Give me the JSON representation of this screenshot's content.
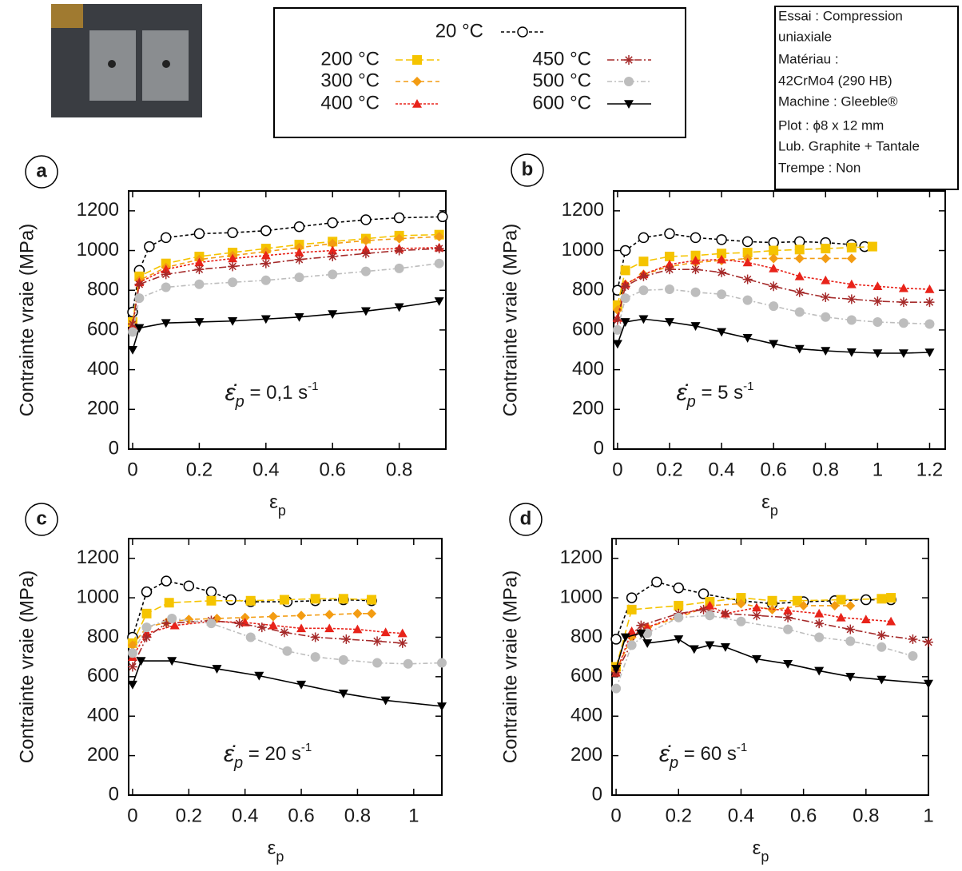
{
  "legend": {
    "entries": [
      {
        "name": "20 °C",
        "color": "#000000",
        "marker": "open-circle",
        "dash": "4 3"
      },
      {
        "name": "200 °C",
        "color": "#f5c400",
        "marker": "square",
        "dash": "9 4"
      },
      {
        "name": "300 °C",
        "color": "#f39c12",
        "marker": "diamond",
        "dash": "6 4"
      },
      {
        "name": "400 °C",
        "color": "#e8231a",
        "marker": "triangle",
        "dash": "3 2"
      },
      {
        "name": "450 °C",
        "color": "#a52a2a",
        "marker": "asterisk",
        "dash": "9 3 2 3"
      },
      {
        "name": "500 °C",
        "color": "#bdbdbd",
        "marker": "circle",
        "dash": "6 3 2 3"
      },
      {
        "name": "600 °C",
        "color": "#000000",
        "marker": "down-triangle",
        "dash": "none"
      }
    ]
  },
  "info": {
    "lines": [
      "Essai : Compression",
      "uniaxiale",
      "Matériau :",
      "42CrMo4 (290 HB)",
      "Machine : Gleeble®",
      "Plot : ϕ8 x 12 mm",
      "Lub. Graphite + Tantale",
      "Trempe : Non"
    ]
  },
  "chart_data": [
    {
      "type": "line",
      "label": "a",
      "ylabel": "Contrainte vraie (MPa)",
      "xlabel": {
        "text": "ε",
        "sub": "p"
      },
      "annotation": {
        "symbol": "ε̇",
        "sub": "p",
        "text": " = 0,1 s",
        "sup": "-1"
      },
      "xlim": [
        -0.012,
        0.94
      ],
      "ylim": [
        0,
        1300
      ],
      "xticks": [
        0,
        0.2,
        0.4,
        0.6,
        0.8
      ],
      "yticks": [
        0,
        200,
        400,
        600,
        800,
        1000,
        1200
      ],
      "series": [
        {
          "x": [
            0,
            0.02,
            0.05,
            0.1,
            0.2,
            0.3,
            0.4,
            0.5,
            0.6,
            0.7,
            0.8,
            0.93
          ],
          "values": [
            690,
            900,
            1020,
            1065,
            1085,
            1090,
            1100,
            1120,
            1140,
            1155,
            1165,
            1170
          ]
        },
        {
          "x": [
            0,
            0.02,
            0.1,
            0.2,
            0.3,
            0.4,
            0.5,
            0.6,
            0.7,
            0.8,
            0.92
          ],
          "values": [
            640,
            870,
            935,
            970,
            990,
            1010,
            1030,
            1045,
            1060,
            1075,
            1080
          ]
        },
        {
          "x": [
            0,
            0.02,
            0.1,
            0.2,
            0.3,
            0.4,
            0.5,
            0.6,
            0.7,
            0.8,
            0.92
          ],
          "values": [
            630,
            850,
            915,
            955,
            975,
            995,
            1015,
            1035,
            1050,
            1060,
            1070
          ]
        },
        {
          "x": [
            0,
            0.02,
            0.1,
            0.2,
            0.3,
            0.4,
            0.5,
            0.6,
            0.7,
            0.8,
            0.92
          ],
          "values": [
            620,
            840,
            905,
            940,
            960,
            975,
            990,
            1000,
            1005,
            1010,
            1015
          ]
        },
        {
          "x": [
            0,
            0.02,
            0.1,
            0.2,
            0.3,
            0.4,
            0.5,
            0.6,
            0.7,
            0.8,
            0.92
          ],
          "values": [
            630,
            830,
            880,
            905,
            920,
            935,
            955,
            970,
            985,
            1000,
            1010
          ]
        },
        {
          "x": [
            0,
            0.02,
            0.1,
            0.2,
            0.3,
            0.4,
            0.5,
            0.6,
            0.7,
            0.8,
            0.92
          ],
          "values": [
            590,
            760,
            815,
            830,
            840,
            850,
            865,
            880,
            895,
            910,
            935
          ]
        },
        {
          "x": [
            0,
            0.02,
            0.1,
            0.2,
            0.3,
            0.4,
            0.5,
            0.6,
            0.7,
            0.8,
            0.92
          ],
          "values": [
            500,
            610,
            635,
            640,
            645,
            655,
            665,
            680,
            695,
            715,
            745
          ]
        }
      ]
    },
    {
      "type": "line",
      "label": "b",
      "ylabel": "Contrainte vraie (MPa)",
      "xlabel": {
        "text": "ε",
        "sub": "p"
      },
      "annotation": {
        "symbol": "ε̇",
        "sub": "p",
        "text": " = 5 s",
        "sup": "-1"
      },
      "xlim": [
        -0.015,
        1.26
      ],
      "ylim": [
        0,
        1300
      ],
      "xticks": [
        0,
        0.2,
        0.4,
        0.6,
        0.8,
        1,
        1.2
      ],
      "yticks": [
        0,
        200,
        400,
        600,
        800,
        1000,
        1200
      ],
      "series": [
        {
          "x": [
            0,
            0.03,
            0.1,
            0.2,
            0.3,
            0.4,
            0.5,
            0.6,
            0.7,
            0.8,
            0.9,
            0.95
          ],
          "values": [
            800,
            1000,
            1065,
            1085,
            1065,
            1055,
            1045,
            1040,
            1045,
            1040,
            1030,
            1020
          ]
        },
        {
          "x": [
            0,
            0.03,
            0.1,
            0.2,
            0.3,
            0.4,
            0.5,
            0.6,
            0.7,
            0.8,
            0.9,
            0.98
          ],
          "values": [
            725,
            900,
            945,
            970,
            975,
            985,
            990,
            1000,
            1005,
            1010,
            1015,
            1020
          ]
        },
        {
          "x": [
            0,
            0.03,
            0.1,
            0.2,
            0.3,
            0.4,
            0.5,
            0.6,
            0.7,
            0.8,
            0.9
          ],
          "values": [
            700,
            830,
            880,
            920,
            940,
            950,
            960,
            960,
            960,
            960,
            960
          ]
        },
        {
          "x": [
            0,
            0.03,
            0.1,
            0.2,
            0.3,
            0.4,
            0.5,
            0.6,
            0.7,
            0.8,
            0.9,
            1.0,
            1.1,
            1.2
          ],
          "values": [
            660,
            830,
            880,
            930,
            950,
            955,
            940,
            910,
            870,
            850,
            830,
            820,
            810,
            805
          ]
        },
        {
          "x": [
            0,
            0.03,
            0.1,
            0.2,
            0.3,
            0.4,
            0.5,
            0.6,
            0.7,
            0.8,
            0.9,
            1.0,
            1.1,
            1.2
          ],
          "values": [
            650,
            820,
            870,
            905,
            905,
            890,
            855,
            820,
            790,
            765,
            755,
            745,
            740,
            740
          ]
        },
        {
          "x": [
            0,
            0.03,
            0.1,
            0.2,
            0.3,
            0.4,
            0.5,
            0.6,
            0.7,
            0.8,
            0.9,
            1.0,
            1.1,
            1.2
          ],
          "values": [
            600,
            760,
            800,
            805,
            790,
            780,
            750,
            720,
            690,
            665,
            650,
            640,
            635,
            630
          ]
        },
        {
          "x": [
            0,
            0.03,
            0.1,
            0.2,
            0.3,
            0.4,
            0.5,
            0.6,
            0.7,
            0.8,
            0.9,
            1.0,
            1.1,
            1.2
          ],
          "values": [
            530,
            640,
            655,
            640,
            620,
            590,
            560,
            530,
            505,
            495,
            488,
            483,
            483,
            487
          ]
        }
      ]
    },
    {
      "type": "line",
      "label": "c",
      "ylabel": "Contrainte vraie (MPa)",
      "xlabel": {
        "text": "ε",
        "sub": "p"
      },
      "annotation": {
        "symbol": "ε̇",
        "sub": "p",
        "text": " = 20 s",
        "sup": "-1"
      },
      "xlim": [
        -0.014,
        1.1
      ],
      "ylim": [
        0,
        1300
      ],
      "xticks": [
        0,
        0.2,
        0.4,
        0.6,
        0.8,
        1
      ],
      "yticks": [
        0,
        200,
        400,
        600,
        800,
        1000,
        1200
      ],
      "series": [
        {
          "x": [
            0,
            0.05,
            0.12,
            0.2,
            0.28,
            0.35,
            0.42,
            0.55,
            0.65,
            0.75,
            0.85
          ],
          "values": [
            800,
            1030,
            1085,
            1060,
            1030,
            990,
            980,
            980,
            985,
            990,
            985
          ]
        },
        {
          "x": [
            0,
            0.05,
            0.13,
            0.28,
            0.42,
            0.54,
            0.65,
            0.75,
            0.85
          ],
          "values": [
            770,
            920,
            975,
            985,
            985,
            990,
            995,
            995,
            990
          ]
        },
        {
          "x": [
            0,
            0.05,
            0.12,
            0.2,
            0.3,
            0.4,
            0.5,
            0.6,
            0.7,
            0.8,
            0.85
          ],
          "values": [
            760,
            850,
            875,
            890,
            895,
            900,
            905,
            910,
            915,
            920,
            920
          ]
        },
        {
          "x": [
            0,
            0.05,
            0.15,
            0.28,
            0.4,
            0.5,
            0.6,
            0.7,
            0.8,
            0.9,
            0.96
          ],
          "values": [
            700,
            820,
            860,
            880,
            875,
            860,
            845,
            845,
            840,
            825,
            820
          ]
        },
        {
          "x": [
            0,
            0.05,
            0.12,
            0.28,
            0.38,
            0.46,
            0.54,
            0.65,
            0.76,
            0.87,
            0.96
          ],
          "values": [
            650,
            800,
            870,
            885,
            870,
            850,
            825,
            800,
            790,
            780,
            770
          ]
        },
        {
          "x": [
            0,
            0.05,
            0.14,
            0.28,
            0.42,
            0.55,
            0.65,
            0.75,
            0.87,
            0.98,
            1.1
          ],
          "values": [
            720,
            850,
            895,
            870,
            800,
            730,
            700,
            685,
            670,
            665,
            670
          ]
        },
        {
          "x": [
            0,
            0.03,
            0.14,
            0.3,
            0.45,
            0.6,
            0.75,
            0.9,
            1.1
          ],
          "values": [
            560,
            680,
            680,
            640,
            605,
            560,
            515,
            480,
            450
          ]
        }
      ]
    },
    {
      "type": "line",
      "label": "d",
      "ylabel": "Contrainte vraie (MPa)",
      "xlabel": {
        "text": "ε",
        "sub": "p"
      },
      "annotation": {
        "symbol": "ε̇",
        "sub": "p",
        "text": " = 60 s",
        "sup": "-1"
      },
      "xlim": [
        -0.013,
        1.0
      ],
      "ylim": [
        0,
        1300
      ],
      "xticks": [
        0,
        0.2,
        0.4,
        0.6,
        0.8,
        1
      ],
      "yticks": [
        0,
        200,
        400,
        600,
        800,
        1000,
        1200
      ],
      "series": [
        {
          "x": [
            0,
            0.05,
            0.13,
            0.2,
            0.28,
            0.4,
            0.5,
            0.6,
            0.7,
            0.8,
            0.88
          ],
          "values": [
            790,
            1000,
            1080,
            1050,
            1020,
            985,
            970,
            980,
            985,
            990,
            990
          ]
        },
        {
          "x": [
            0,
            0.05,
            0.2,
            0.3,
            0.4,
            0.5,
            0.58,
            0.72,
            0.85,
            0.88
          ],
          "values": [
            650,
            940,
            960,
            980,
            1000,
            985,
            985,
            990,
            995,
            1000
          ]
        },
        {
          "x": [
            0,
            0.05,
            0.1,
            0.2,
            0.3,
            0.4,
            0.5,
            0.6,
            0.7,
            0.75
          ],
          "values": [
            630,
            800,
            850,
            900,
            960,
            970,
            940,
            960,
            960,
            960
          ]
        },
        {
          "x": [
            0,
            0.05,
            0.1,
            0.2,
            0.3,
            0.35,
            0.45,
            0.55,
            0.65,
            0.72,
            0.8,
            0.88
          ],
          "values": [
            620,
            830,
            850,
            910,
            960,
            920,
            950,
            935,
            920,
            900,
            890,
            880
          ]
        },
        {
          "x": [
            0,
            0.08,
            0.2,
            0.28,
            0.35,
            0.45,
            0.55,
            0.65,
            0.75,
            0.85,
            0.95,
            1.0
          ],
          "values": [
            620,
            860,
            920,
            940,
            920,
            910,
            900,
            870,
            840,
            810,
            790,
            775
          ]
        },
        {
          "x": [
            0,
            0.05,
            0.1,
            0.2,
            0.3,
            0.4,
            0.55,
            0.65,
            0.75,
            0.85,
            0.95
          ],
          "values": [
            540,
            760,
            820,
            900,
            910,
            880,
            840,
            800,
            780,
            750,
            705
          ]
        },
        {
          "x": [
            0,
            0.03,
            0.08,
            0.1,
            0.2,
            0.25,
            0.3,
            0.35,
            0.45,
            0.55,
            0.65,
            0.75,
            0.85,
            1.0
          ],
          "values": [
            640,
            800,
            820,
            770,
            790,
            740,
            760,
            750,
            690,
            665,
            630,
            600,
            585,
            565
          ]
        }
      ]
    }
  ]
}
